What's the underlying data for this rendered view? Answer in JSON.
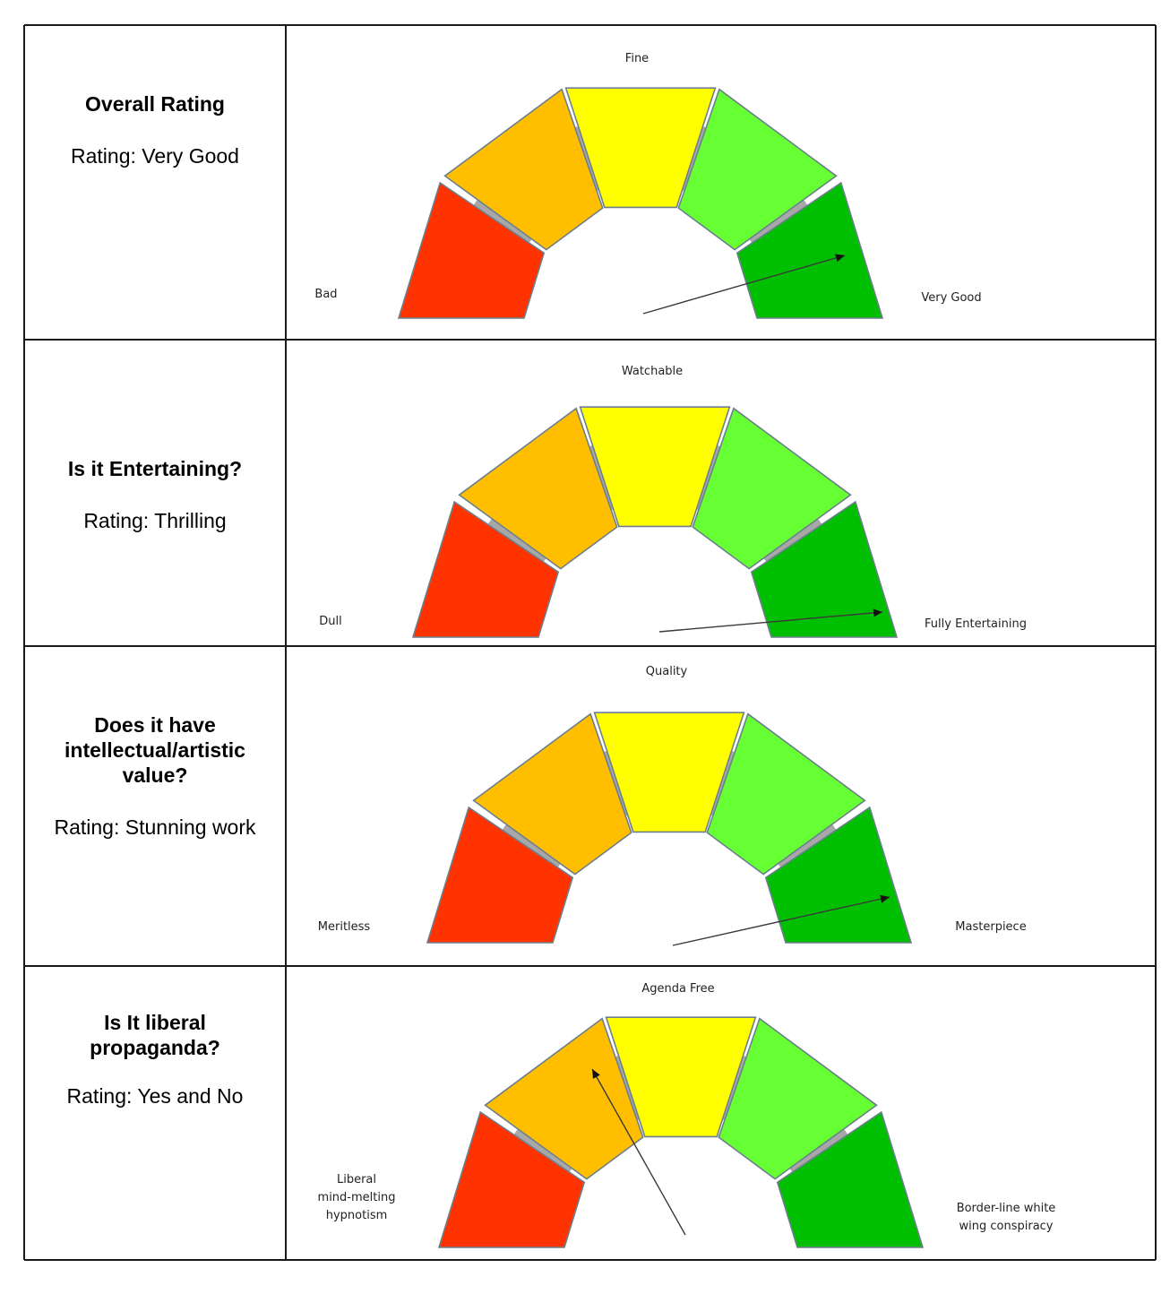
{
  "colors": {
    "segments": [
      "#ff3300",
      "#ffbf00",
      "#ffff00",
      "#66ff33",
      "#00bf00"
    ],
    "band": "#a8a8a8",
    "border": "#1a1a1a"
  },
  "rows": [
    {
      "title_lines": [
        "Overall Rating"
      ],
      "rating": "Rating: Very Good",
      "labels": {
        "left": [
          "Bad"
        ],
        "top": [
          "Fine"
        ],
        "right": [
          "Very Good"
        ]
      },
      "needle_segment": 5
    },
    {
      "title_lines": [
        "Is it Entertaining?"
      ],
      "rating": "Rating: Thrilling",
      "labels": {
        "left": [
          "Dull"
        ],
        "top": [
          "Watchable"
        ],
        "right": [
          "Fully Entertaining"
        ]
      },
      "needle_segment": 5
    },
    {
      "title_lines": [
        "Does it have",
        "intellectual/artistic",
        "value?"
      ],
      "rating": "Rating: Stunning work",
      "labels": {
        "left": [
          "Meritless"
        ],
        "top": [
          "Quality"
        ],
        "right": [
          "Masterpiece"
        ]
      },
      "needle_segment": 5
    },
    {
      "title_lines": [
        "Is It liberal",
        "propaganda?"
      ],
      "rating": "Rating: Yes and No",
      "labels": {
        "left": [
          "Liberal",
          "mind-melting",
          "hypnotism"
        ],
        "top": [
          "Agenda Free"
        ],
        "right": [
          "Border-line white",
          "wing conspiracy"
        ]
      },
      "needle_segment": 2
    }
  ]
}
